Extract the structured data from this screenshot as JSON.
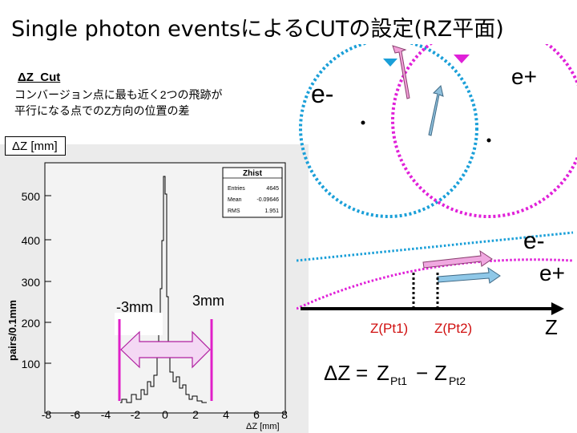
{
  "slide": {
    "title": "Single photon eventsによるCUTの設定(RZ平面)"
  },
  "note": {
    "heading": "ΔZ_Cut",
    "line1": "コンバージョン点に最も近く2つの飛跡が",
    "line2": "平行になる点でのZ方向の位置の差"
  },
  "unit_box": "ΔZ [mm]",
  "histogram": {
    "yaxis_label": "pairs/0.1mm",
    "xaxis_label": "ΔZ [mm]",
    "y_ticks": [
      "100",
      "200",
      "300",
      "400",
      "500"
    ],
    "x_ticks": [
      "-8",
      "-6",
      "-4",
      "-2",
      "0",
      "2",
      "4",
      "6",
      "8"
    ],
    "stats": {
      "name": "Zhist",
      "entries_label": "Entries",
      "entries_value": "4645",
      "mean_label": "Mean",
      "mean_value": "-0.09646",
      "rms_label": "RMS",
      "rms_value": "1.951"
    },
    "cut_left_label": "-3mm",
    "cut_right_label": "3mm",
    "cut_color": "#e020c8"
  },
  "diagram": {
    "electron_label_top": "e-",
    "positron_label_top": "e+",
    "electron_label_side": "e-",
    "positron_label_side": "e+",
    "z_axis_label": "Z",
    "z1_label": "Z(Pt1)",
    "z2_label": "Z(Pt2)",
    "electron_color": "#1a9fd8",
    "positron_color": "#e020d8",
    "z_label_color": "#d01010"
  },
  "formula": {
    "delta": "ΔZ",
    "equals": "=",
    "z": "Z",
    "sub1": "Pt1",
    "minus": "−",
    "sub2": "Pt2"
  }
}
